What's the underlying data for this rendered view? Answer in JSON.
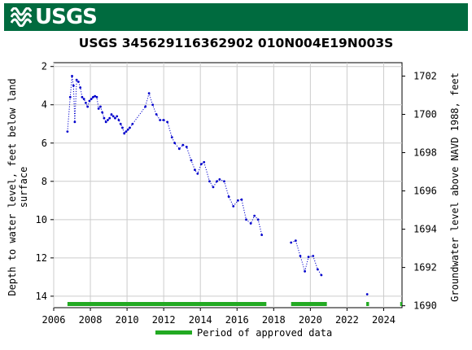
{
  "header": {
    "agency": "USGS",
    "brand_color": "#006b3f"
  },
  "chart_data": {
    "type": "scatter",
    "title": "USGS 345629116362902 010N004E19N003S",
    "ylabel": "Depth to water level, feet below land surface",
    "ylabel_lines": [
      "Depth to water level, feet below land",
      "surface"
    ],
    "y2label": "Groundwater level above NAVD 1988, feet",
    "xlim": [
      2006,
      2025
    ],
    "ylim": [
      14.6,
      1.8
    ],
    "y2lim": [
      1689.9,
      1702.7
    ],
    "x_ticks": [
      2006,
      2008,
      2010,
      2012,
      2014,
      2016,
      2018,
      2020,
      2022,
      2024
    ],
    "y_ticks": [
      2,
      4,
      6,
      8,
      10,
      12,
      14
    ],
    "y2_ticks": [
      1690,
      1692,
      1694,
      1696,
      1698,
      1700,
      1702
    ],
    "grid": true,
    "series": [
      {
        "marker_color": "#0000cc",
        "line_style": "dotted",
        "segments": [
          [
            [
              2006.75,
              5.4
            ],
            [
              2006.9,
              3.6
            ],
            [
              2007.0,
              2.5
            ],
            [
              2007.08,
              3.0
            ],
            [
              2007.15,
              4.9
            ],
            [
              2007.25,
              2.7
            ],
            [
              2007.35,
              2.8
            ],
            [
              2007.45,
              3.1
            ],
            [
              2007.55,
              3.6
            ],
            [
              2007.65,
              3.7
            ],
            [
              2007.75,
              3.9
            ],
            [
              2007.85,
              4.1
            ],
            [
              2007.95,
              3.8
            ],
            [
              2008.05,
              3.7
            ],
            [
              2008.15,
              3.6
            ],
            [
              2008.25,
              3.55
            ],
            [
              2008.35,
              3.6
            ],
            [
              2008.45,
              4.2
            ],
            [
              2008.55,
              4.1
            ],
            [
              2008.65,
              4.4
            ],
            [
              2008.75,
              4.7
            ],
            [
              2008.85,
              4.9
            ],
            [
              2008.95,
              4.8
            ],
            [
              2009.05,
              4.7
            ],
            [
              2009.15,
              4.5
            ],
            [
              2009.25,
              4.6
            ],
            [
              2009.35,
              4.7
            ],
            [
              2009.45,
              4.6
            ],
            [
              2009.55,
              4.8
            ],
            [
              2009.65,
              5.0
            ],
            [
              2009.75,
              5.2
            ],
            [
              2009.85,
              5.5
            ],
            [
              2009.95,
              5.4
            ],
            [
              2010.05,
              5.3
            ],
            [
              2010.15,
              5.2
            ],
            [
              2010.3,
              5.0
            ],
            [
              2011.0,
              4.1
            ],
            [
              2011.2,
              3.4
            ],
            [
              2011.4,
              4.0
            ],
            [
              2011.6,
              4.5
            ],
            [
              2011.8,
              4.8
            ],
            [
              2012.0,
              4.8
            ],
            [
              2012.2,
              4.9
            ],
            [
              2012.45,
              5.7
            ],
            [
              2012.6,
              6.0
            ],
            [
              2012.85,
              6.3
            ],
            [
              2013.05,
              6.1
            ],
            [
              2013.25,
              6.2
            ],
            [
              2013.5,
              6.9
            ],
            [
              2013.7,
              7.4
            ],
            [
              2013.85,
              7.6
            ],
            [
              2014.05,
              7.1
            ],
            [
              2014.2,
              7.0
            ],
            [
              2014.5,
              8.0
            ],
            [
              2014.7,
              8.3
            ],
            [
              2014.9,
              8.0
            ],
            [
              2015.05,
              7.9
            ],
            [
              2015.3,
              8.0
            ],
            [
              2015.55,
              8.8
            ],
            [
              2015.8,
              9.3
            ],
            [
              2016.05,
              9.0
            ],
            [
              2016.25,
              8.95
            ],
            [
              2016.5,
              10.0
            ],
            [
              2016.75,
              10.2
            ],
            [
              2016.95,
              9.8
            ],
            [
              2017.15,
              10.0
            ],
            [
              2017.35,
              10.8
            ]
          ],
          [
            [
              2018.95,
              11.2
            ],
            [
              2019.2,
              11.1
            ],
            [
              2019.45,
              11.9
            ],
            [
              2019.7,
              12.7
            ],
            [
              2019.9,
              11.95
            ],
            [
              2020.15,
              11.9
            ],
            [
              2020.4,
              12.6
            ],
            [
              2020.6,
              12.9
            ]
          ],
          [
            [
              2023.1,
              13.9
            ]
          ]
        ]
      }
    ],
    "approved_periods": [
      [
        2006.75,
        2017.6
      ],
      [
        2018.95,
        2020.9
      ],
      [
        2023.05,
        2023.2
      ],
      [
        2024.9,
        2025.0
      ]
    ],
    "approved_color": "#22aa22",
    "legend": {
      "label": "Period of approved data",
      "position": "bottom"
    }
  }
}
